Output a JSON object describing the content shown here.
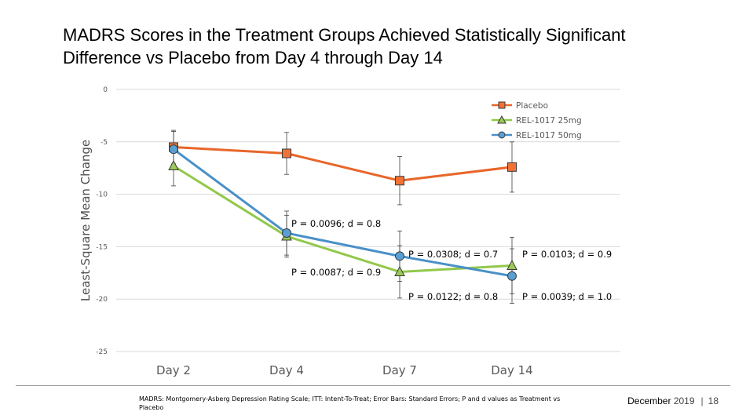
{
  "title": "MADRS Scores in the Treatment Groups Achieved Statistically Significant Difference vs Placebo from Day 4 through Day 14",
  "footnote": "MADRS: Montgomery-Asberg Depression Rating Scale; ITT: Intent-To-Treat; Error Bars: Standard Errors; P and d values as Treatment vs Placebo",
  "footer": {
    "month": "December",
    "year": "2019",
    "separator": "|",
    "page": "18"
  },
  "chart_data": {
    "type": "line",
    "title": "",
    "xlabel": "",
    "ylabel": "Least-Square Mean Change",
    "categories": [
      "Day 2",
      "Day 4",
      "Day 7",
      "Day 14"
    ],
    "ylim": [
      -25,
      0
    ],
    "yticks": [
      0,
      -5,
      -10,
      -15,
      -20,
      -25
    ],
    "grid": true,
    "legend_position": "top-right",
    "series": [
      {
        "name": "Placebo",
        "color": "#e8662a",
        "marker": "square",
        "marker_fill": "#f07236",
        "values": [
          -5.5,
          -6.1,
          -8.7,
          -7.4
        ],
        "error": [
          1.6,
          2.0,
          2.3,
          2.4
        ]
      },
      {
        "name": "REL-1017 25mg",
        "color": "#92c84a",
        "marker": "triangle",
        "marker_fill": "#9ac95a",
        "values": [
          -7.3,
          -14.0,
          -17.4,
          -16.8
        ],
        "error": [
          1.9,
          2.0,
          2.5,
          2.7
        ]
      },
      {
        "name": "REL-1017 50mg",
        "color": "#4a90c8",
        "marker": "circle",
        "marker_fill": "#5a9fd4",
        "values": [
          -5.7,
          -13.7,
          -15.9,
          -17.8
        ],
        "error": [
          1.7,
          2.1,
          2.4,
          2.6
        ]
      }
    ],
    "annotations": [
      {
        "text": "P = 0.0096; d = 0.8"
      },
      {
        "text": "P = 0.0087; d = 0.9"
      },
      {
        "text": "P = 0.0308; d = 0.7"
      },
      {
        "text": "P = 0.0122; d = 0.8"
      },
      {
        "text": "P = 0.0103; d = 0.9"
      },
      {
        "text": "P = 0.0039; d = 1.0"
      }
    ]
  }
}
